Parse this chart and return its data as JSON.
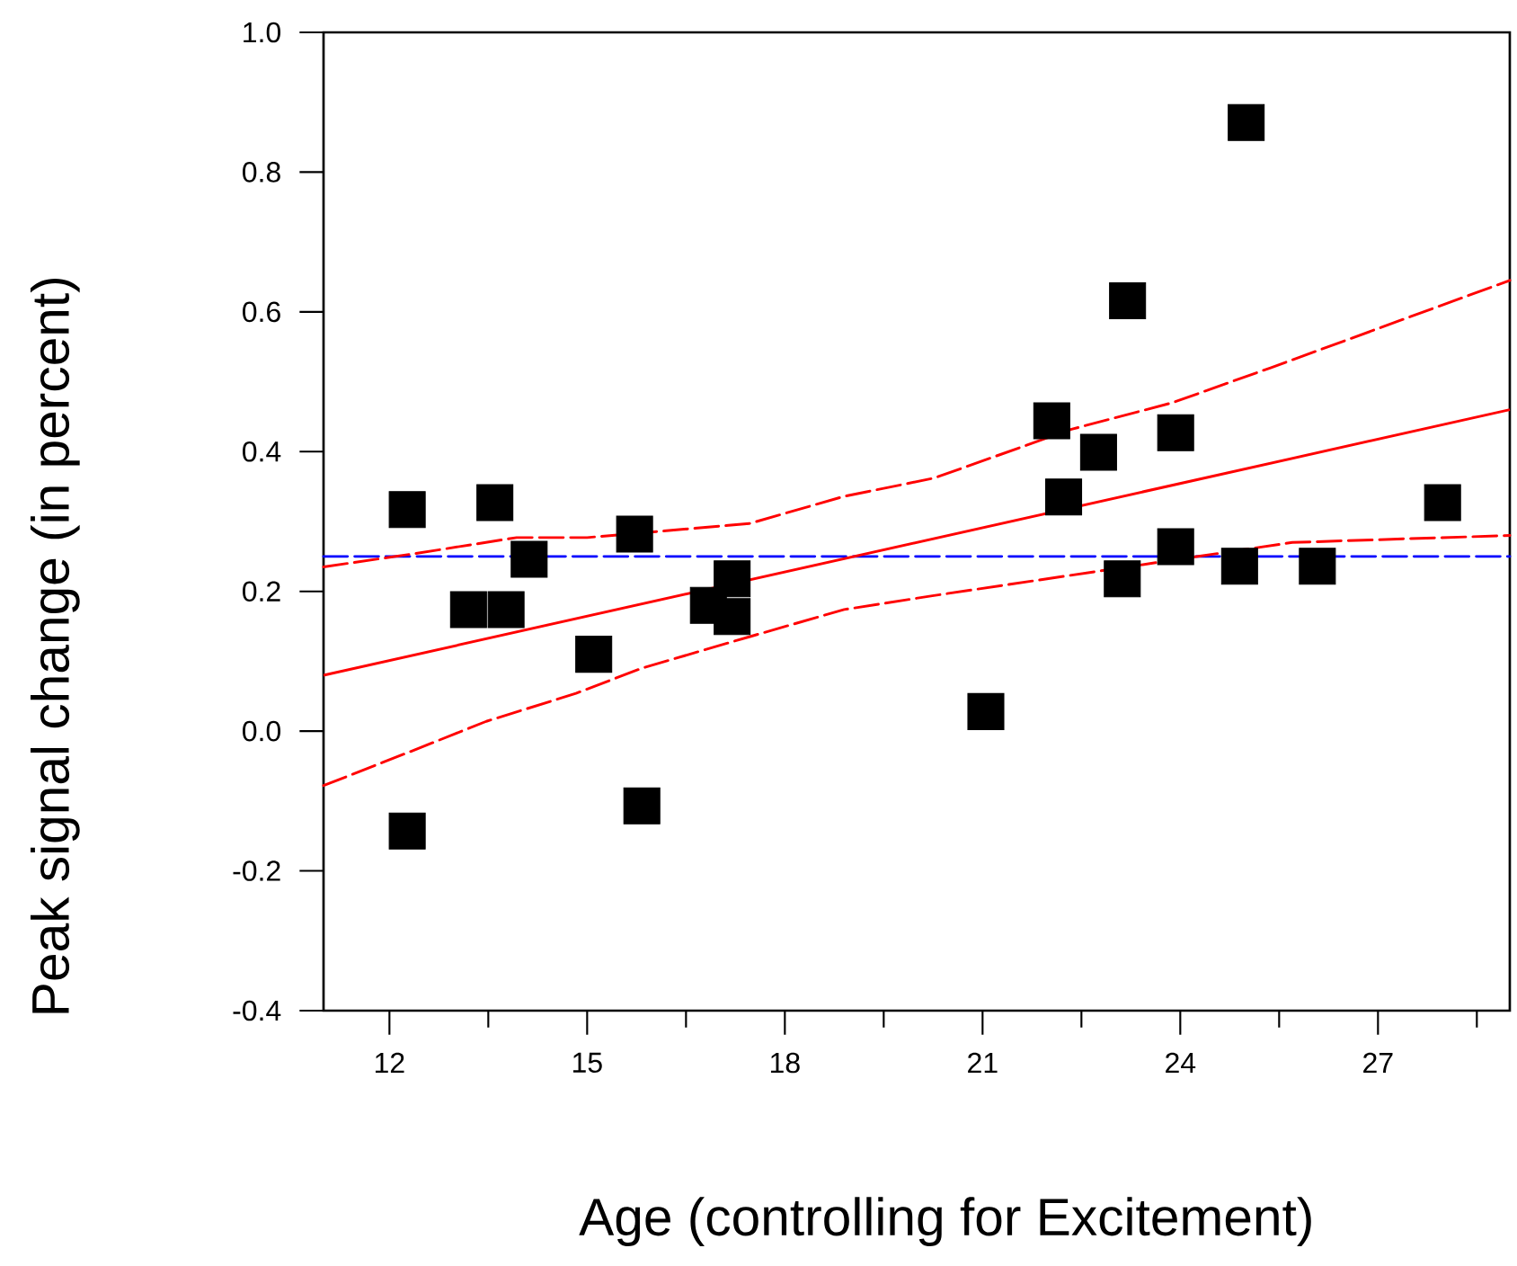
{
  "chart_data": {
    "type": "scatter",
    "xlabel": "Age (controlling for Excitement)",
    "ylabel": "Peak signal change (in percent)",
    "xlim": [
      11,
      29
    ],
    "ylim": [
      -0.4,
      1.0
    ],
    "xticks": [
      12,
      {
        "value": 13.5,
        "label": null
      },
      15,
      {
        "value": 16.5,
        "label": null
      },
      18,
      {
        "value": 19.5,
        "label": null
      },
      21,
      {
        "value": 22.5,
        "label": null
      },
      24,
      {
        "value": 25.5,
        "label": null
      },
      27,
      {
        "value": 28.5,
        "label": null
      }
    ],
    "yticks": [
      -0.4,
      -0.2,
      {
        "value": 0,
        "label": "0.0"
      },
      0.2,
      0.4,
      0.6,
      0.8,
      {
        "value": 1,
        "label": "1.0"
      }
    ],
    "marker": "square",
    "series": [
      {
        "type": "scatter",
        "color": "#000000",
        "x": [
          12.27,
          12.27,
          13.2,
          13.77,
          13.6,
          14.12,
          15.1,
          15.72,
          15.83,
          16.84,
          17.2,
          17.2,
          21.05,
          22.05,
          22.23,
          22.76,
          23.12,
          23.2,
          23.93,
          23.93,
          24.9,
          25.0,
          26.08,
          27.98
        ],
        "values": [
          0.317,
          -0.143,
          0.174,
          0.174,
          0.327,
          0.246,
          0.11,
          0.282,
          -0.107,
          0.18,
          0.218,
          0.164,
          0.028,
          0.444,
          0.335,
          0.399,
          0.218,
          0.616,
          0.427,
          0.264,
          0.236,
          0.871,
          0.236,
          0.327
        ]
      },
      {
        "type": "line",
        "color": "#ff0000",
        "line_style": "solid",
        "marker": "none",
        "x": [
          11,
          29
        ],
        "values": [
          0.08,
          0.46
        ]
      },
      {
        "type": "line",
        "color": "#ff0000",
        "line_style": "dashed",
        "marker": "none",
        "x": [
          11,
          12.38,
          13.93,
          15.0,
          17.46,
          18.9,
          20.26,
          22.35,
          23.88,
          25.37,
          29
        ],
        "values": [
          0.235,
          0.254,
          0.277,
          0.277,
          0.297,
          0.336,
          0.362,
          0.432,
          0.47,
          0.52,
          0.645
        ]
      },
      {
        "type": "line",
        "color": "#ff0000",
        "line_style": "dashed",
        "marker": "none",
        "x": [
          11,
          12.38,
          13.47,
          14.83,
          15.83,
          17.46,
          18.9,
          20.26,
          25.7,
          29
        ],
        "values": [
          -0.078,
          -0.027,
          0.014,
          0.054,
          0.09,
          0.135,
          0.174,
          0.194,
          0.27,
          0.28
        ]
      }
    ],
    "ref_lines": [
      {
        "axis": "y",
        "value": 0.25,
        "color": "#0000ff",
        "line_style": "dashed"
      }
    ]
  }
}
